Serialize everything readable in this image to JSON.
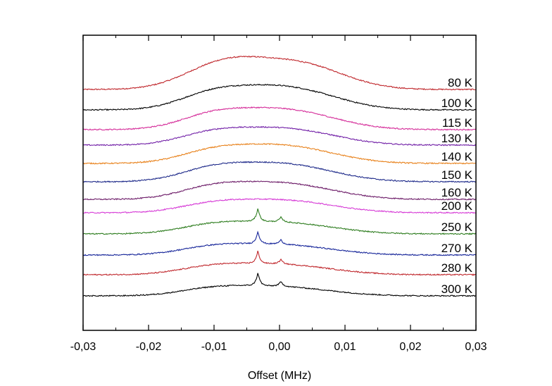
{
  "chart_data": {
    "type": "line",
    "title": "",
    "xlabel": "Offset (MHz)",
    "ylabel": "",
    "xlim": [
      -0.03,
      0.03
    ],
    "x_ticks": [
      -0.03,
      -0.02,
      -0.01,
      0.0,
      0.01,
      0.02,
      0.03
    ],
    "x_tick_labels": [
      "-0,03",
      "-0,02",
      "-0,01",
      "0,00",
      "0,01",
      "0,02",
      "0,03"
    ],
    "y_axis": "stacked offset, no tick labels",
    "grid": false,
    "legend": "inline labels at right end of each trace",
    "series": [
      {
        "name": "80 K",
        "color": "#c0282d",
        "baseline": 127,
        "broad": [
          [
            -0.0095,
            0.0055,
            25
          ],
          [
            -0.002,
            0.007,
            27
          ],
          [
            0.0055,
            0.006,
            19
          ]
        ],
        "peak": 0
      },
      {
        "name": "100 K",
        "color": "#000000",
        "baseline": 156,
        "broad": [
          [
            -0.0105,
            0.005,
            20
          ],
          [
            -0.002,
            0.006,
            24
          ],
          [
            0.0055,
            0.006,
            15
          ]
        ],
        "peak": 0
      },
      {
        "name": "115 K",
        "color": "#d52e9a",
        "baseline": 184,
        "broad": [
          [
            -0.0105,
            0.005,
            18
          ],
          [
            -0.002,
            0.006,
            21
          ],
          [
            0.0055,
            0.006,
            13
          ]
        ],
        "peak": 0
      },
      {
        "name": "130 K",
        "color": "#7322a8",
        "baseline": 206,
        "broad": [
          [
            -0.0105,
            0.005,
            15
          ],
          [
            -0.002,
            0.006,
            17
          ],
          [
            0.0055,
            0.006,
            11
          ]
        ],
        "peak": 0
      },
      {
        "name": "140 K",
        "color": "#e8821c",
        "baseline": 232,
        "broad": [
          [
            -0.0105,
            0.005,
            15
          ],
          [
            -0.002,
            0.006,
            19
          ],
          [
            0.0055,
            0.006,
            11
          ]
        ],
        "peak": 0
      },
      {
        "name": "150 K",
        "color": "#1e2a8a",
        "baseline": 258,
        "broad": [
          [
            -0.0105,
            0.005,
            16
          ],
          [
            -0.002,
            0.006,
            19
          ],
          [
            0.0055,
            0.006,
            11
          ]
        ],
        "peak": 0
      },
      {
        "name": "160 K",
        "color": "#6e1e6a",
        "baseline": 283,
        "broad": [
          [
            -0.0105,
            0.005,
            15
          ],
          [
            -0.002,
            0.006,
            17
          ],
          [
            0.0055,
            0.006,
            10
          ]
        ],
        "peak": 0
      },
      {
        "name": "200 K",
        "color": "#d63bd6",
        "baseline": 302,
        "broad": [
          [
            -0.0105,
            0.005,
            11
          ],
          [
            -0.002,
            0.006,
            13
          ],
          [
            0.0055,
            0.006,
            8
          ]
        ],
        "peak": 0
      },
      {
        "name": "250 K",
        "color": "#2e7d1f",
        "baseline": 332,
        "broad": [
          [
            -0.0105,
            0.005,
            11
          ],
          [
            -0.002,
            0.006,
            12
          ],
          [
            0.0055,
            0.006,
            7
          ]
        ],
        "peak": 19
      },
      {
        "name": "270 K",
        "color": "#17269a",
        "baseline": 362,
        "broad": [
          [
            -0.0105,
            0.005,
            10
          ],
          [
            -0.002,
            0.006,
            11
          ],
          [
            0.0055,
            0.006,
            6
          ]
        ],
        "peak": 18
      },
      {
        "name": "280 K",
        "color": "#c0282d",
        "baseline": 390,
        "broad": [
          [
            -0.0105,
            0.005,
            10
          ],
          [
            -0.002,
            0.006,
            11
          ],
          [
            0.0055,
            0.006,
            6
          ]
        ],
        "peak": 18
      },
      {
        "name": "300 K",
        "color": "#000000",
        "baseline": 420,
        "broad": [
          [
            -0.0105,
            0.005,
            9
          ],
          [
            -0.002,
            0.006,
            10
          ],
          [
            0.0055,
            0.006,
            5
          ]
        ],
        "peak": 19
      }
    ],
    "sharp_peak_center": -0.0033
  }
}
